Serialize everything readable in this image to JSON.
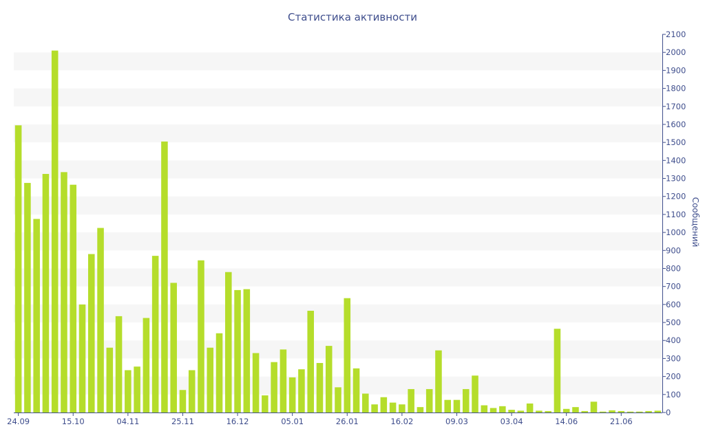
{
  "title": "Статистика активности",
  "chart_data": {
    "type": "bar",
    "title": "Статистика активности",
    "ylabel": "Сообщений",
    "xlabel": "",
    "ylim": [
      0,
      2100
    ],
    "ytick_step": 100,
    "ytick_labels": [
      "0",
      "100",
      "200",
      "300",
      "400",
      "500",
      "600",
      "700",
      "800",
      "900",
      "1000",
      "1100",
      "1200",
      "1300",
      "1400",
      "1500",
      "1600",
      "1700",
      "1800",
      "1900",
      "2000",
      "2100"
    ],
    "grid": "alternating horizontal bands",
    "y_axis_position": "right",
    "bar_color": "#b5dd2b",
    "band_color": "#f6f6f6",
    "axis_color": "#3e4d8c",
    "x_tick_labels": [
      {
        "index": 0,
        "label": "24.09"
      },
      {
        "index": 6,
        "label": "15.10"
      },
      {
        "index": 12,
        "label": "04.11"
      },
      {
        "index": 18,
        "label": "25.11"
      },
      {
        "index": 24,
        "label": "16.12"
      },
      {
        "index": 30,
        "label": "05.01"
      },
      {
        "index": 36,
        "label": "26.01"
      },
      {
        "index": 42,
        "label": "16.02"
      },
      {
        "index": 48,
        "label": "09.03"
      },
      {
        "index": 54,
        "label": "03.04"
      },
      {
        "index": 60,
        "label": "14.06"
      },
      {
        "index": 66,
        "label": "21.06"
      }
    ],
    "values": [
      1595,
      1275,
      1075,
      1325,
      2010,
      1335,
      1265,
      600,
      880,
      1025,
      360,
      535,
      235,
      255,
      525,
      870,
      1505,
      720,
      125,
      235,
      845,
      360,
      440,
      780,
      680,
      685,
      330,
      95,
      280,
      350,
      195,
      240,
      565,
      275,
      370,
      140,
      635,
      245,
      105,
      45,
      85,
      55,
      45,
      130,
      30,
      130,
      345,
      70,
      70,
      130,
      205,
      40,
      25,
      35,
      15,
      10,
      50,
      10,
      8,
      465,
      20,
      30,
      8,
      60,
      5,
      12,
      8,
      5,
      5,
      8,
      10
    ]
  }
}
